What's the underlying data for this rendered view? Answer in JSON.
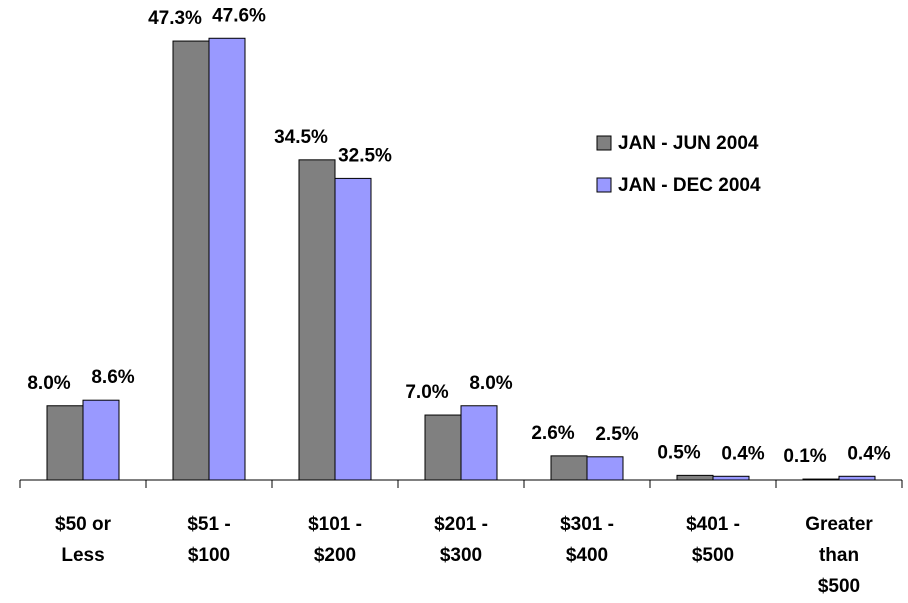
{
  "chart_data": {
    "type": "bar",
    "categories": [
      "$50 or Less",
      "$51 - $100",
      "$101 - $200",
      "$201 - $300",
      "$301 - $400",
      "$401 - $500",
      "Greater than $500"
    ],
    "series": [
      {
        "name": "JAN - JUN 2004",
        "color": "#808080",
        "values": [
          8.0,
          47.3,
          34.5,
          7.0,
          2.6,
          0.5,
          0.1
        ],
        "value_labels": [
          "8.0%",
          "47.3%",
          "34.5%",
          "7.0%",
          "2.6%",
          "0.5%",
          "0.1%"
        ]
      },
      {
        "name": "JAN - DEC 2004",
        "color": "#9999ff",
        "values": [
          8.6,
          47.6,
          32.5,
          8.0,
          2.5,
          0.4,
          0.4
        ],
        "value_labels": [
          "8.6%",
          "47.6%",
          "32.5%",
          "8.0%",
          "2.5%",
          "0.4%",
          "0.4%"
        ]
      }
    ],
    "ylim": [
      0,
      50
    ],
    "legend": "upper right"
  }
}
